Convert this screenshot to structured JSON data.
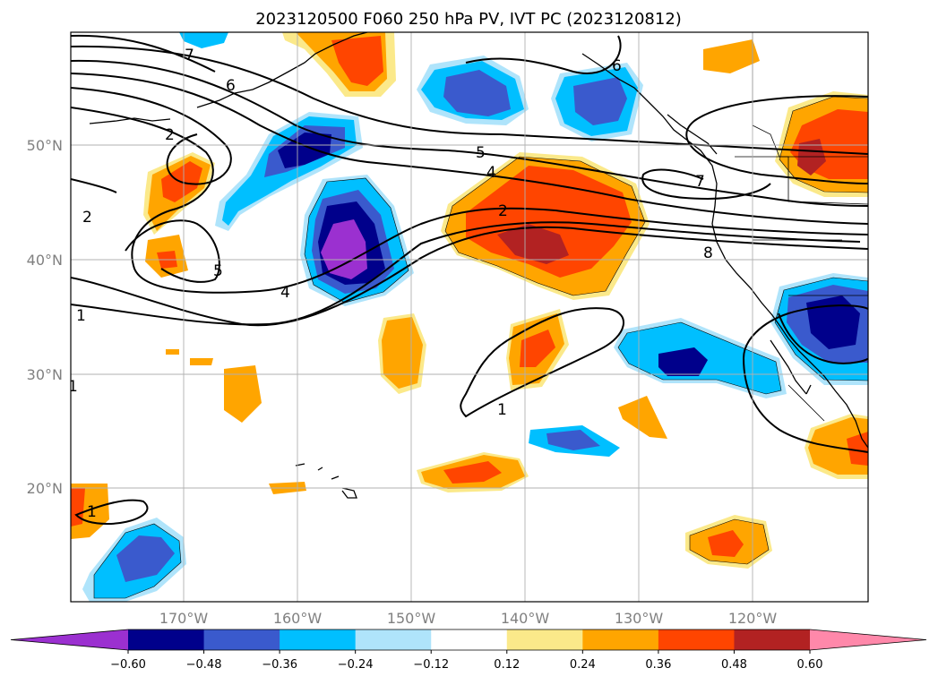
{
  "title": "2023120500 F060 250 hPa PV, IVT PC (2023120812)",
  "lat_labels": [
    "50°N",
    "40°N",
    "30°N",
    "20°N"
  ],
  "lon_labels": [
    "170°W",
    "160°W",
    "150°W",
    "140°W",
    "130°W",
    "120°W"
  ],
  "colorbar": {
    "ticks": [
      "−0.60",
      "−0.48",
      "−0.36",
      "−0.24",
      "−0.12",
      "0.12",
      "0.24",
      "0.36",
      "0.48",
      "0.60"
    ],
    "colors": [
      "#9b30d0",
      "#00008b",
      "#3a5acd",
      "#00bfff",
      "#afe4fb",
      "#ffffff",
      "#fbe98a",
      "#ffa500",
      "#ff4500",
      "#b22222",
      "#ff88aa"
    ]
  },
  "contour_labels": [
    "7",
    "6",
    "2",
    "2",
    "5",
    "4",
    "2",
    "5",
    "4",
    "1",
    "1",
    "1",
    "1",
    "8",
    "6",
    "7"
  ],
  "colors": {
    "gridline": "#b0b0b0",
    "contour": "#000000",
    "coast": "#000000"
  }
}
